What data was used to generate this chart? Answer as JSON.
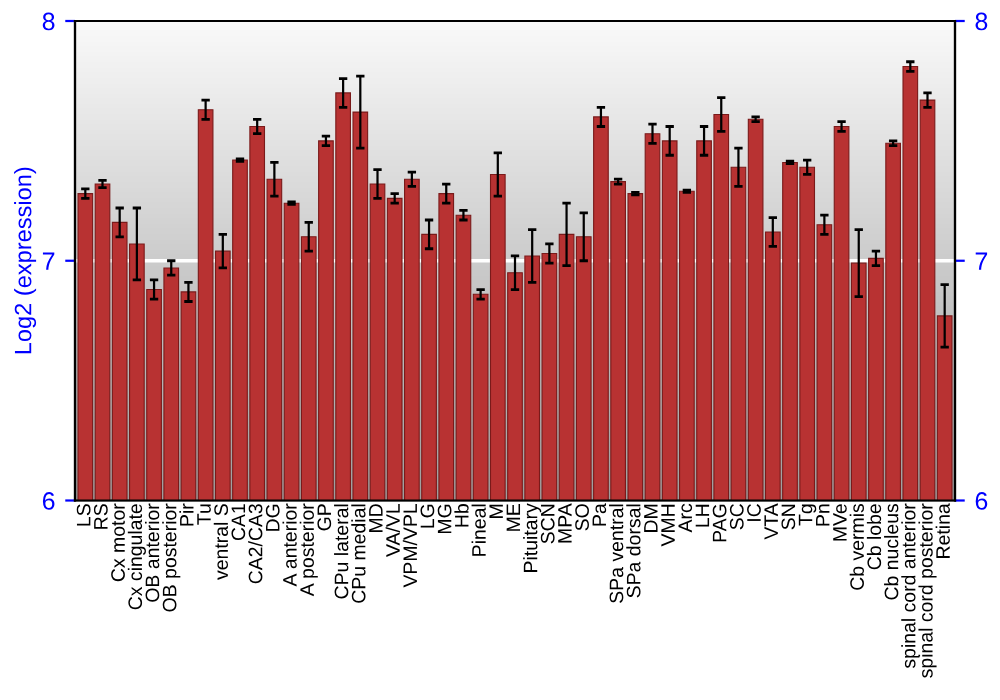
{
  "chart_data": {
    "type": "bar",
    "ylabel": "Log2 (expression)",
    "categories": [
      "LS",
      "RS",
      "Cx motor",
      "Cx cingulate",
      "OB anterior",
      "OB posterior",
      "Pir",
      "Tu",
      "ventral S",
      "CA1",
      "CA2/CA3",
      "DG",
      "A anterior",
      "A posterior",
      "GP",
      "CPu lateral",
      "CPu medial",
      "MD",
      "VA/VL",
      "VPM/VPL",
      "LG",
      "MG",
      "Hb",
      "Pineal",
      "M",
      "ME",
      "Pituitary",
      "SCN",
      "MPA",
      "SO",
      "Pa",
      "SPa ventral",
      "SPa dorsal",
      "DM",
      "VMH",
      "Arc",
      "LH",
      "PAG",
      "SC",
      "IC",
      "VTA",
      "SN",
      "Tg",
      "Pn",
      "MVe",
      "Cb vermis",
      "Cb lobe",
      "Cb nucleus",
      "spinal cord anterior",
      "spinal cord posterior",
      "Retina"
    ],
    "values": [
      7.28,
      7.32,
      7.16,
      7.07,
      6.88,
      6.97,
      6.87,
      7.63,
      7.04,
      7.42,
      7.56,
      7.34,
      7.24,
      7.1,
      7.5,
      7.7,
      7.62,
      7.32,
      7.26,
      7.34,
      7.11,
      7.28,
      7.19,
      6.86,
      7.36,
      6.95,
      7.02,
      7.03,
      7.11,
      7.1,
      7.6,
      7.33,
      7.28,
      7.53,
      7.5,
      7.29,
      7.5,
      7.61,
      7.39,
      7.59,
      7.12,
      7.41,
      7.39,
      7.15,
      7.56,
      6.99,
      7.01,
      7.49,
      7.81,
      7.67,
      6.77
    ],
    "errors": [
      0.02,
      0.015,
      0.06,
      0.15,
      0.04,
      0.03,
      0.04,
      0.04,
      0.07,
      0.005,
      0.03,
      0.07,
      0.005,
      0.06,
      0.02,
      0.06,
      0.15,
      0.06,
      0.02,
      0.03,
      0.06,
      0.04,
      0.02,
      0.02,
      0.09,
      0.07,
      0.11,
      0.04,
      0.13,
      0.1,
      0.04,
      0.01,
      0.005,
      0.04,
      0.06,
      0.005,
      0.06,
      0.07,
      0.08,
      0.01,
      0.06,
      0.005,
      0.03,
      0.04,
      0.02,
      0.14,
      0.03,
      0.01,
      0.02,
      0.03,
      0.13
    ],
    "color": "#b83232",
    "ylim": [
      6,
      8
    ],
    "yticks": [
      6,
      7,
      8
    ],
    "y2lim": [
      6,
      8
    ],
    "y2ticks": [
      6,
      7,
      8
    ],
    "ref_lines": [
      {
        "axis": "y",
        "value": 7,
        "color": "#ffffff"
      }
    ],
    "legend": false
  }
}
